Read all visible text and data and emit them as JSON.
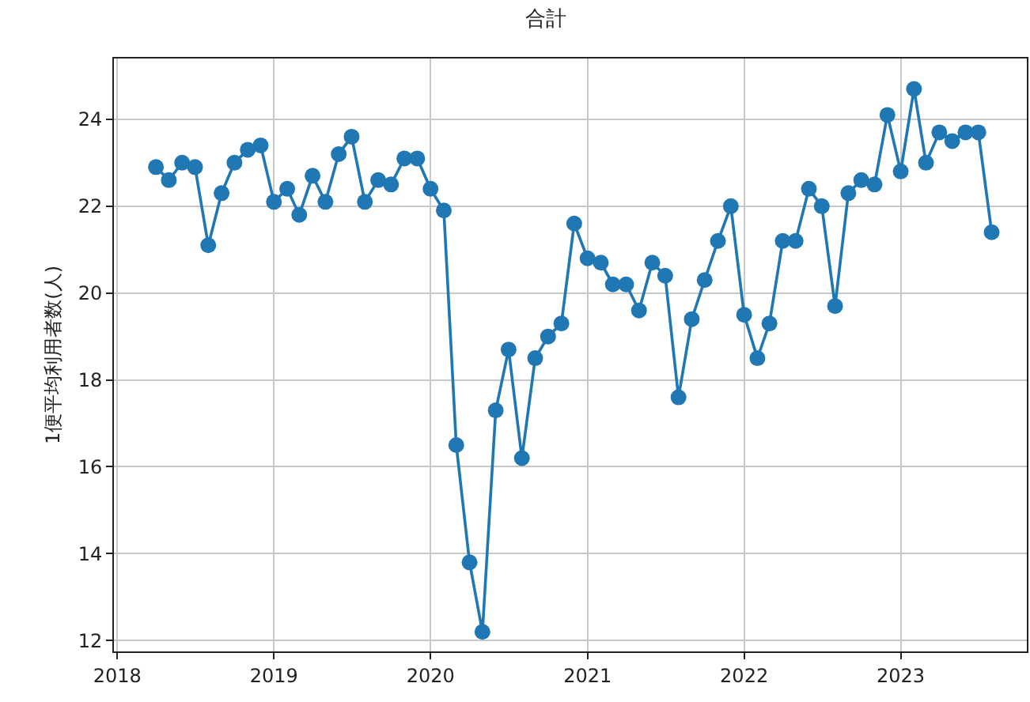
{
  "chart_data": {
    "type": "line",
    "title": "合計",
    "ylabel": "1便平均利用者数(人)",
    "x": [
      "2018-04",
      "2018-05",
      "2018-06",
      "2018-07",
      "2018-08",
      "2018-09",
      "2018-10",
      "2018-11",
      "2018-12",
      "2019-01",
      "2019-02",
      "2019-03",
      "2019-04",
      "2019-05",
      "2019-06",
      "2019-07",
      "2019-08",
      "2019-09",
      "2019-10",
      "2019-11",
      "2019-12",
      "2020-01",
      "2020-02",
      "2020-03",
      "2020-04",
      "2020-05",
      "2020-06",
      "2020-07",
      "2020-08",
      "2020-09",
      "2020-10",
      "2020-11",
      "2020-12",
      "2021-01",
      "2021-02",
      "2021-03",
      "2021-04",
      "2021-05",
      "2021-06",
      "2021-07",
      "2021-08",
      "2021-09",
      "2021-10",
      "2021-11",
      "2021-12",
      "2022-01",
      "2022-02",
      "2022-03",
      "2022-04",
      "2022-05",
      "2022-06",
      "2022-07",
      "2022-08",
      "2022-09",
      "2022-10",
      "2022-11",
      "2022-12",
      "2023-01",
      "2023-02",
      "2023-03",
      "2023-04",
      "2023-05",
      "2023-06",
      "2023-07",
      "2023-08"
    ],
    "series": [
      {
        "color": "#1f77b4",
        "values": [
          22.9,
          22.6,
          23.0,
          22.9,
          21.1,
          22.3,
          23.0,
          23.3,
          23.4,
          22.1,
          22.4,
          21.8,
          22.7,
          22.1,
          23.2,
          23.6,
          22.1,
          22.6,
          22.5,
          23.1,
          23.1,
          22.4,
          21.9,
          16.5,
          13.8,
          12.2,
          17.3,
          18.7,
          16.2,
          18.5,
          19.0,
          19.3,
          21.6,
          20.8,
          20.7,
          20.2,
          20.2,
          19.6,
          20.7,
          20.4,
          17.6,
          19.4,
          20.3,
          21.2,
          22.0,
          19.5,
          18.5,
          19.3,
          21.2,
          21.2,
          22.4,
          22.0,
          19.7,
          22.3,
          22.6,
          22.5,
          24.1,
          22.8,
          24.7,
          23.0,
          23.7,
          23.5,
          23.7,
          23.7,
          21.4
        ]
      }
    ],
    "xlim": [
      "2017-12-24",
      "2023-10-22"
    ],
    "xticks": [
      {
        "value": "2018-01-01",
        "label": "2018"
      },
      {
        "value": "2019-01-01",
        "label": "2019"
      },
      {
        "value": "2020-01-01",
        "label": "2020"
      },
      {
        "value": "2021-01-01",
        "label": "2021"
      },
      {
        "value": "2022-01-01",
        "label": "2022"
      },
      {
        "value": "2023-01-01",
        "label": "2023"
      }
    ],
    "ylim": [
      11.75,
      25.4
    ],
    "yticks": [
      12,
      14,
      16,
      18,
      20,
      22,
      24
    ],
    "grid": true,
    "marker": "circle",
    "line_style": "solid"
  }
}
